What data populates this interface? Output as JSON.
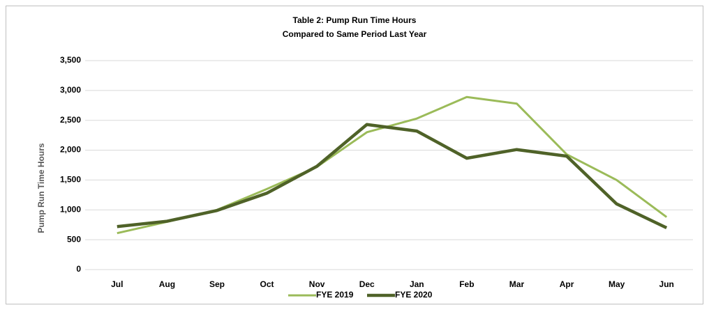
{
  "chart_data": {
    "type": "line",
    "title": "Table 2: Pump Run Time Hours",
    "subtitle": "Compared to Same Period Last Year",
    "y_label": "Pump Run Time Hours",
    "categories": [
      "Jul",
      "Aug",
      "Sep",
      "Oct",
      "Nov",
      "Dec",
      "Jan",
      "Feb",
      "Mar",
      "Apr",
      "May",
      "Jun"
    ],
    "series": [
      {
        "name": "FYE 2019",
        "color": "#9bbb59",
        "values": [
          610,
          800,
          1000,
          1350,
          1720,
          2300,
          2530,
          2890,
          2780,
          1930,
          1500,
          880
        ]
      },
      {
        "name": "FYE 2020",
        "color": "#4f6228",
        "values": [
          720,
          810,
          990,
          1280,
          1730,
          2430,
          2320,
          1865,
          2010,
          1900,
          1100,
          700
        ]
      }
    ],
    "ylim": [
      0,
      3500
    ],
    "yticks": [
      0,
      500,
      {
        "value": 1000,
        "label": "1,000"
      },
      {
        "value": 1500,
        "label": "1,500"
      },
      {
        "value": 2000,
        "label": "2,000"
      },
      {
        "value": 2500,
        "label": "2,500"
      },
      {
        "value": 3000,
        "label": "3,000"
      },
      {
        "value": 3500,
        "label": "3,500"
      }
    ],
    "grid": true,
    "legend": "bottom"
  }
}
